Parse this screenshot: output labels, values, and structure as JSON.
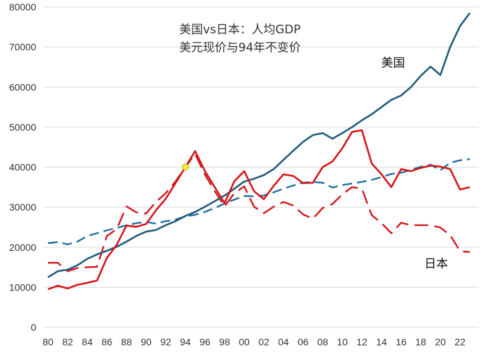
{
  "chart_data": {
    "type": "line",
    "title_line1": "美国vs日本：人均GDP",
    "title_line2": "美元现价与94年不变价",
    "xlabel": "",
    "ylabel": "",
    "ylim": [
      0,
      80000
    ],
    "y_ticks": [
      "0",
      "10000",
      "20000",
      "30000",
      "40000",
      "50000",
      "60000",
      "70000",
      "80000"
    ],
    "x_ticks": [
      "80",
      "82",
      "84",
      "86",
      "88",
      "90",
      "92",
      "94",
      "96",
      "98",
      "00",
      "02",
      "04",
      "06",
      "08",
      "10",
      "12",
      "14",
      "16",
      "18",
      "20",
      "22"
    ],
    "grid": "horizontal",
    "annotations": {
      "us_label": "美国",
      "japan_label": "日本"
    },
    "marker": {
      "year": 1994,
      "value": 40000,
      "color": "#f2f03a"
    },
    "series": [
      {
        "name": "美国 现价",
        "color": "#1f5c7d",
        "style": "solid",
        "x": [
          1980,
          1981,
          1982,
          1983,
          1984,
          1985,
          1986,
          1987,
          1988,
          1989,
          1990,
          1991,
          1992,
          1993,
          1994,
          1995,
          1996,
          1997,
          1998,
          1999,
          2000,
          2001,
          2002,
          2003,
          2004,
          2005,
          2006,
          2007,
          2008,
          2009,
          2010,
          2011,
          2012,
          2013,
          2014,
          2015,
          2016,
          2017,
          2018,
          2019,
          2020,
          2021,
          2022,
          2023
        ],
        "values": [
          12500,
          14000,
          14400,
          15500,
          17100,
          18200,
          19100,
          20100,
          21400,
          22800,
          23900,
          24300,
          25500,
          26500,
          27800,
          28800,
          30100,
          31500,
          32900,
          34600,
          36400,
          37100,
          38000,
          39500,
          41800,
          44100,
          46300,
          48000,
          48500,
          47100,
          48500,
          50000,
          51700,
          53200,
          55000,
          56800,
          57900,
          60000,
          62800,
          65100,
          63000,
          70000,
          75200,
          78500
        ]
      },
      {
        "name": "美国 94年不变价",
        "color": "#1f6fa0",
        "style": "dashed",
        "x": [
          1980,
          1981,
          1982,
          1983,
          1984,
          1985,
          1986,
          1987,
          1988,
          1989,
          1990,
          1991,
          1992,
          1993,
          1994,
          1995,
          1996,
          1997,
          1998,
          1999,
          2000,
          2001,
          2002,
          2003,
          2004,
          2005,
          2006,
          2007,
          2008,
          2009,
          2010,
          2011,
          2012,
          2013,
          2014,
          2015,
          2016,
          2017,
          2018,
          2019,
          2020,
          2021,
          2022,
          2023
        ],
        "values": [
          21000,
          21300,
          20700,
          21400,
          22800,
          23500,
          24200,
          24800,
          25500,
          26000,
          26300,
          25900,
          26500,
          26900,
          27700,
          28100,
          28800,
          29800,
          30900,
          31900,
          32800,
          32700,
          32900,
          33700,
          34600,
          35400,
          36100,
          36300,
          36100,
          34900,
          35500,
          35900,
          36300,
          36800,
          37500,
          38300,
          38600,
          39300,
          40100,
          40600,
          39200,
          41100,
          41700,
          42000
        ]
      },
      {
        "name": "日本 现价",
        "color": "#d4161b",
        "style": "solid",
        "x": [
          1980,
          1981,
          1982,
          1983,
          1984,
          1985,
          1986,
          1987,
          1988,
          1989,
          1990,
          1991,
          1992,
          1993,
          1994,
          1995,
          1996,
          1997,
          1998,
          1999,
          2000,
          2001,
          2002,
          2003,
          2004,
          2005,
          2006,
          2007,
          2008,
          2009,
          2010,
          2011,
          2012,
          2013,
          2014,
          2015,
          2016,
          2017,
          2018,
          2019,
          2020,
          2021,
          2022,
          2023
        ],
        "values": [
          9500,
          10400,
          9700,
          10600,
          11100,
          11700,
          17300,
          20600,
          25400,
          25100,
          25800,
          29200,
          32100,
          36000,
          40000,
          44000,
          39000,
          35000,
          31000,
          36500,
          39000,
          34000,
          32000,
          35300,
          38200,
          37800,
          36000,
          36100,
          40000,
          41400,
          44700,
          48800,
          49200,
          40900,
          38200,
          35000,
          39500,
          39000,
          39800,
          40400,
          40100,
          39500,
          34400,
          35000
        ]
      },
      {
        "name": "日本 94年不变价",
        "color": "#d4161b",
        "style": "dashed",
        "x": [
          1980,
          1981,
          1982,
          1983,
          1984,
          1985,
          1986,
          1987,
          1988,
          1989,
          1990,
          1991,
          1992,
          1993,
          1994,
          1995,
          1996,
          1997,
          1998,
          1999,
          2000,
          2001,
          2002,
          2003,
          2004,
          2005,
          2006,
          2007,
          2008,
          2009,
          2010,
          2011,
          2012,
          2013,
          2014,
          2015,
          2016,
          2017,
          2018,
          2019,
          2020,
          2021,
          2022,
          2023
        ],
        "values": [
          16100,
          16100,
          14000,
          14800,
          15000,
          15100,
          22800,
          24500,
          30200,
          28700,
          28400,
          31300,
          33500,
          36400,
          40000,
          43300,
          38100,
          34000,
          30200,
          33500,
          35200,
          30100,
          28500,
          30100,
          31300,
          30400,
          28200,
          27100,
          29800,
          30800,
          33200,
          35000,
          34600,
          28000,
          26000,
          23500,
          26100,
          25500,
          25500,
          25500,
          24900,
          23000,
          19000,
          18800
        ]
      }
    ]
  }
}
